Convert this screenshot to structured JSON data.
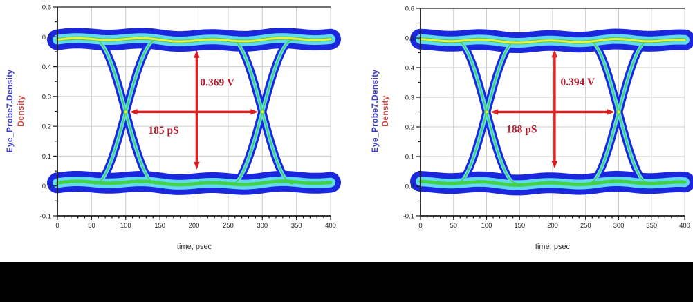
{
  "palette": {
    "background": "#ffffff",
    "bottom_bar": "#000000",
    "trace_blue": "#1b27dd",
    "trace_cyan": "#62d9f2",
    "trace_green": "#43d148",
    "trace_yellow": "#eef046",
    "arrow_red": "#dd1f1f",
    "measure_text_red": "#b01f30",
    "ylabel_blue": "#3b3bcc",
    "ylabel_red": "#cc4848",
    "grid_color": "#cccccc",
    "axis_color": "#1a1a1a",
    "tick_text_color": "#222222"
  },
  "chart_data": [
    {
      "type": "heatmap",
      "subtype": "eye_diagram_density",
      "title": "",
      "ylabel_primary": "Eye_Probe7.Density",
      "ylabel_secondary": "Density",
      "xlabel": "time, psec",
      "xlim": [
        0,
        400
      ],
      "ylim": [
        -0.1,
        0.6
      ],
      "grid": true,
      "x_tick_values": [
        0,
        50,
        100,
        150,
        200,
        250,
        300,
        350,
        400
      ],
      "x_tick_labels": [
        "0",
        "50",
        "100",
        "150",
        "200",
        "250",
        "300",
        "350",
        "400"
      ],
      "x_minor_step": 10,
      "y_tick_values": [
        -0.1,
        0,
        0.1,
        0.2,
        0.3,
        0.4,
        0.5,
        0.6
      ],
      "y_tick_labels": [
        "-0.1",
        "0.0",
        "0.1",
        "0.2",
        "0.3",
        "0.4",
        "0.5",
        "0.6"
      ],
      "eye": {
        "top_level": 0.49,
        "bottom_level": 0.01,
        "crossing_level": 0.248,
        "crossing_times_ps": [
          100,
          300
        ],
        "transition_half_ps": 45,
        "unit_interval_ps": 200
      },
      "measurements": {
        "eye_height_v": 0.369,
        "eye_height_label": "0.369 V",
        "eye_width_ps": 185,
        "eye_width_label": "185 pS",
        "v_arrow": {
          "x_ps": 204,
          "y_from": 0.055,
          "y_to": 0.455,
          "label_x_ps": 209,
          "label_y": 0.335
        },
        "h_arrow": {
          "y": 0.248,
          "x_from_ps": 106,
          "x_to_ps": 294,
          "label_x_ps": 133,
          "label_y": 0.175
        }
      }
    },
    {
      "type": "heatmap",
      "subtype": "eye_diagram_density",
      "title": "",
      "ylabel_primary": "Eye_Probe7.Density",
      "ylabel_secondary": "Density",
      "xlabel": "time, psec",
      "xlim": [
        0,
        400
      ],
      "ylim": [
        -0.1,
        0.6
      ],
      "grid": true,
      "x_tick_values": [
        0,
        50,
        100,
        150,
        200,
        250,
        300,
        350,
        400
      ],
      "x_tick_labels": [
        "0",
        "50",
        "100",
        "150",
        "200",
        "250",
        "300",
        "350",
        "400"
      ],
      "x_minor_step": 10,
      "y_tick_values": [
        -0.1,
        0,
        0.1,
        0.2,
        0.3,
        0.4,
        0.5,
        0.6
      ],
      "y_tick_labels": [
        "-0.1",
        "0.0",
        "0.1",
        "0.2",
        "0.3",
        "0.4",
        "0.5",
        "0.6"
      ],
      "eye": {
        "top_level": 0.49,
        "bottom_level": 0.01,
        "crossing_level": 0.25,
        "crossing_times_ps": [
          100,
          300
        ],
        "transition_half_ps": 45,
        "unit_interval_ps": 200
      },
      "measurements": {
        "eye_height_v": 0.394,
        "eye_height_label": "0.394 V",
        "eye_width_ps": 188,
        "eye_width_label": "188 pS",
        "v_arrow": {
          "x_ps": 203,
          "y_from": 0.06,
          "y_to": 0.46,
          "label_x_ps": 212,
          "label_y": 0.34
        },
        "h_arrow": {
          "y": 0.25,
          "x_from_ps": 106,
          "x_to_ps": 294,
          "label_x_ps": 130,
          "label_y": 0.18
        }
      }
    }
  ]
}
